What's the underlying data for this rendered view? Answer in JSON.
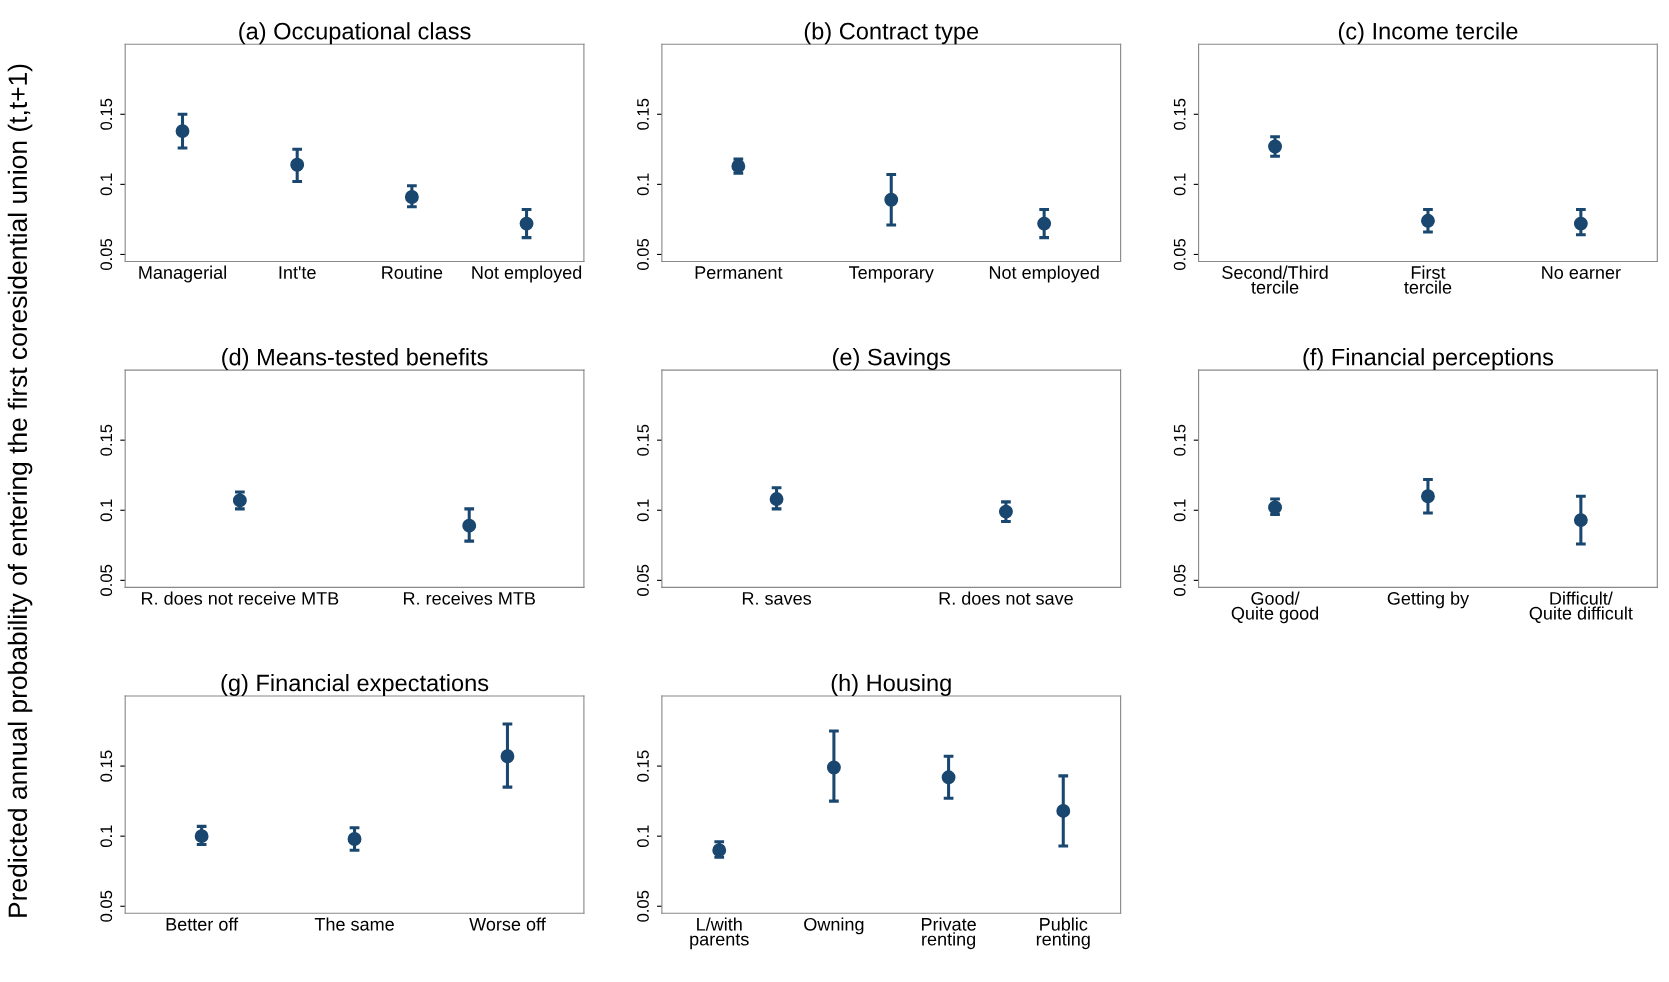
{
  "chart_data": [
    {
      "type": "scatter",
      "title": "(a) Occupational class",
      "ylabel": "Predicted annual probability of entering the first coresidential union (t,t+1)",
      "categories": [
        "Managerial",
        "Int'te",
        "Routine",
        "Not employed"
      ],
      "values": [
        0.138,
        0.114,
        0.091,
        0.072
      ],
      "errors": [
        [
          0.126,
          0.15
        ],
        [
          0.102,
          0.125
        ],
        [
          0.084,
          0.099
        ],
        [
          0.062,
          0.082
        ]
      ],
      "color": "#1a476f",
      "marker": "circle",
      "ylim": [
        0.045,
        0.2
      ],
      "yticks": [
        0.05,
        0.1,
        0.15
      ],
      "grid": false,
      "legend": false
    },
    {
      "type": "scatter",
      "title": "(b) Contract type",
      "categories": [
        "Permanent",
        "Temporary",
        "Not employed"
      ],
      "values": [
        0.113,
        0.089,
        0.072
      ],
      "errors": [
        [
          0.108,
          0.118
        ],
        [
          0.071,
          0.107
        ],
        [
          0.062,
          0.082
        ]
      ],
      "color": "#1a476f",
      "marker": "circle",
      "ylim": [
        0.045,
        0.2
      ],
      "yticks": [
        0.05,
        0.1,
        0.15
      ],
      "grid": false,
      "legend": false
    },
    {
      "type": "scatter",
      "title": "(c) Income tercile",
      "categories": [
        "Second/Third\ntercile",
        "First\ntercile",
        "No earner"
      ],
      "values": [
        0.127,
        0.074,
        0.072
      ],
      "errors": [
        [
          0.12,
          0.134
        ],
        [
          0.066,
          0.082
        ],
        [
          0.064,
          0.082
        ]
      ],
      "color": "#1a476f",
      "marker": "circle",
      "ylim": [
        0.045,
        0.2
      ],
      "yticks": [
        0.05,
        0.1,
        0.15
      ],
      "grid": false,
      "legend": false
    },
    {
      "type": "scatter",
      "title": "(d) Means-tested benefits",
      "categories": [
        "R. does not receive MTB",
        "R. receives MTB"
      ],
      "values": [
        0.107,
        0.089
      ],
      "errors": [
        [
          0.101,
          0.113
        ],
        [
          0.078,
          0.101
        ]
      ],
      "color": "#1a476f",
      "marker": "circle",
      "ylim": [
        0.045,
        0.2
      ],
      "yticks": [
        0.05,
        0.1,
        0.15
      ],
      "grid": false,
      "legend": false
    },
    {
      "type": "scatter",
      "title": "(e) Savings",
      "categories": [
        "R. saves",
        "R. does not save"
      ],
      "values": [
        0.108,
        0.099
      ],
      "errors": [
        [
          0.101,
          0.116
        ],
        [
          0.092,
          0.106
        ]
      ],
      "color": "#1a476f",
      "marker": "circle",
      "ylim": [
        0.045,
        0.2
      ],
      "yticks": [
        0.05,
        0.1,
        0.15
      ],
      "grid": false,
      "legend": false
    },
    {
      "type": "scatter",
      "title": "(f) Financial perceptions",
      "categories": [
        "Good/\nQuite good",
        "Getting by",
        "Difficult/\nQuite difficult"
      ],
      "values": [
        0.102,
        0.11,
        0.093
      ],
      "errors": [
        [
          0.097,
          0.108
        ],
        [
          0.098,
          0.122
        ],
        [
          0.076,
          0.11
        ]
      ],
      "color": "#1a476f",
      "marker": "circle",
      "ylim": [
        0.045,
        0.2
      ],
      "yticks": [
        0.05,
        0.1,
        0.15
      ],
      "grid": false,
      "legend": false
    },
    {
      "type": "scatter",
      "title": "(g) Financial expectations",
      "categories": [
        "Better off",
        "The same",
        "Worse off"
      ],
      "values": [
        0.1,
        0.098,
        0.157
      ],
      "errors": [
        [
          0.094,
          0.107
        ],
        [
          0.09,
          0.106
        ],
        [
          0.135,
          0.18
        ]
      ],
      "color": "#1a476f",
      "marker": "circle",
      "ylim": [
        0.045,
        0.2
      ],
      "yticks": [
        0.05,
        0.1,
        0.15
      ],
      "grid": false,
      "legend": false
    },
    {
      "type": "scatter",
      "title": "(h) Housing",
      "categories": [
        "L/with\nparents",
        "Owning",
        "Private\nrenting",
        "Public\nrenting"
      ],
      "values": [
        0.09,
        0.149,
        0.142,
        0.118
      ],
      "errors": [
        [
          0.085,
          0.096
        ],
        [
          0.125,
          0.175
        ],
        [
          0.127,
          0.157
        ],
        [
          0.093,
          0.143
        ]
      ],
      "color": "#1a476f",
      "marker": "circle",
      "ylim": [
        0.045,
        0.2
      ],
      "yticks": [
        0.05,
        0.1,
        0.15
      ],
      "grid": false,
      "legend": false
    }
  ]
}
